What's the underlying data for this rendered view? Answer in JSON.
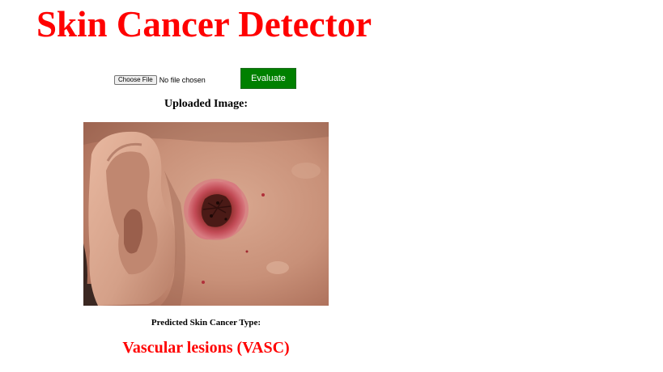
{
  "header": {
    "title": "Skin Cancer Detector"
  },
  "upload": {
    "choose_file_label": "Choose File",
    "file_status": "No file chosen",
    "evaluate_label": "Evaluate"
  },
  "preview": {
    "label": "Uploaded Image:"
  },
  "prediction": {
    "label": "Predicted Skin Cancer Type:",
    "result": "Vascular lesions (VASC)"
  },
  "colors": {
    "title": "#ff0000",
    "result": "#ff0000",
    "evaluate_button": "#008000"
  }
}
